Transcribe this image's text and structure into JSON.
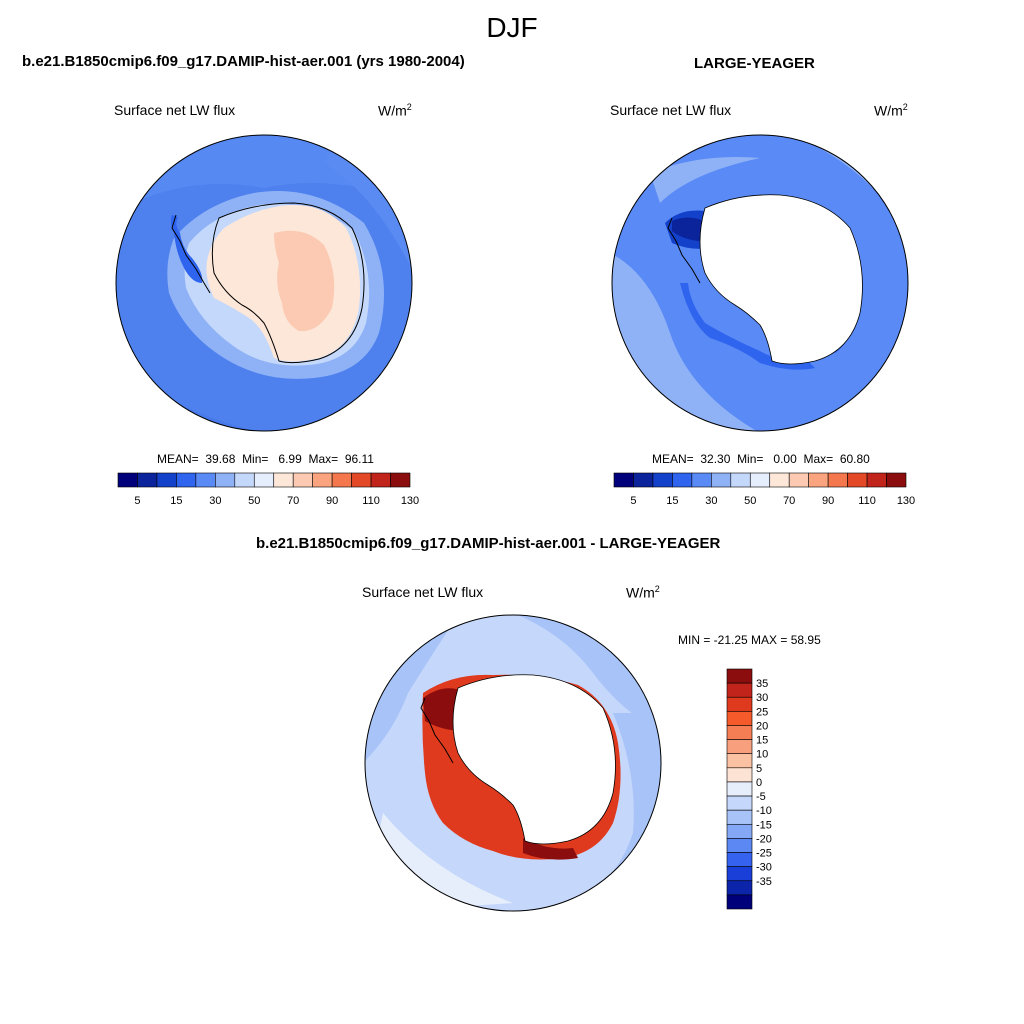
{
  "season": "DJF",
  "left_panel": {
    "title": "b.e21.B1850cmip6.f09_g17.DAMIP-hist-aer.001 (yrs 1980-2004)",
    "variable": "Surface net LW flux",
    "units_base": "W/m",
    "units_exp": "2",
    "stats": {
      "mean_label": "MEAN=",
      "mean": "39.68",
      "min_label": "Min=",
      "min": "6.99",
      "max_label": "Max=",
      "max": "96.11"
    }
  },
  "right_panel": {
    "title": "LARGE-YEAGER",
    "variable": "Surface net LW flux",
    "units_base": "W/m",
    "units_exp": "2",
    "stats": {
      "mean_label": "MEAN=",
      "mean": "32.30",
      "min_label": "Min=",
      "min": "0.00",
      "max_label": "Max=",
      "max": "60.80"
    }
  },
  "diff_panel": {
    "title": "b.e21.B1850cmip6.f09_g17.DAMIP-hist-aer.001 - LARGE-YEAGER",
    "variable": "Surface net LW flux",
    "units_base": "W/m",
    "units_exp": "2",
    "minmax": "MIN = -21.25 MAX =  58.95"
  },
  "colorbar_top": {
    "colors": [
      "#00007a",
      "#0b239b",
      "#1441c9",
      "#2f64ee",
      "#5a8af6",
      "#8fb2f7",
      "#c3d8fa",
      "#e4eefc",
      "#fde7d9",
      "#fccab2",
      "#f9a47f",
      "#f4774d",
      "#e34827",
      "#c1241a",
      "#8c0d0d"
    ],
    "tick_labels": [
      "5",
      "15",
      "30",
      "50",
      "70",
      "90",
      "110",
      "130"
    ]
  },
  "colorbar_diff": {
    "colors": [
      "#8c0d0d",
      "#c1241a",
      "#e03a1e",
      "#f45a2a",
      "#f67e55",
      "#f8a07e",
      "#fbc1a3",
      "#fde3d3",
      "#e6eefc",
      "#c5d7fa",
      "#a7c3f8",
      "#84a8f6",
      "#5c88f3",
      "#3562ef",
      "#1a3fd9",
      "#0c24aa",
      "#00007a"
    ],
    "tick_labels": [
      "35",
      "30",
      "25",
      "20",
      "15",
      "10",
      "5",
      "0",
      "-5",
      "-10",
      "-15",
      "-20",
      "-25",
      "-30",
      "-35"
    ]
  }
}
